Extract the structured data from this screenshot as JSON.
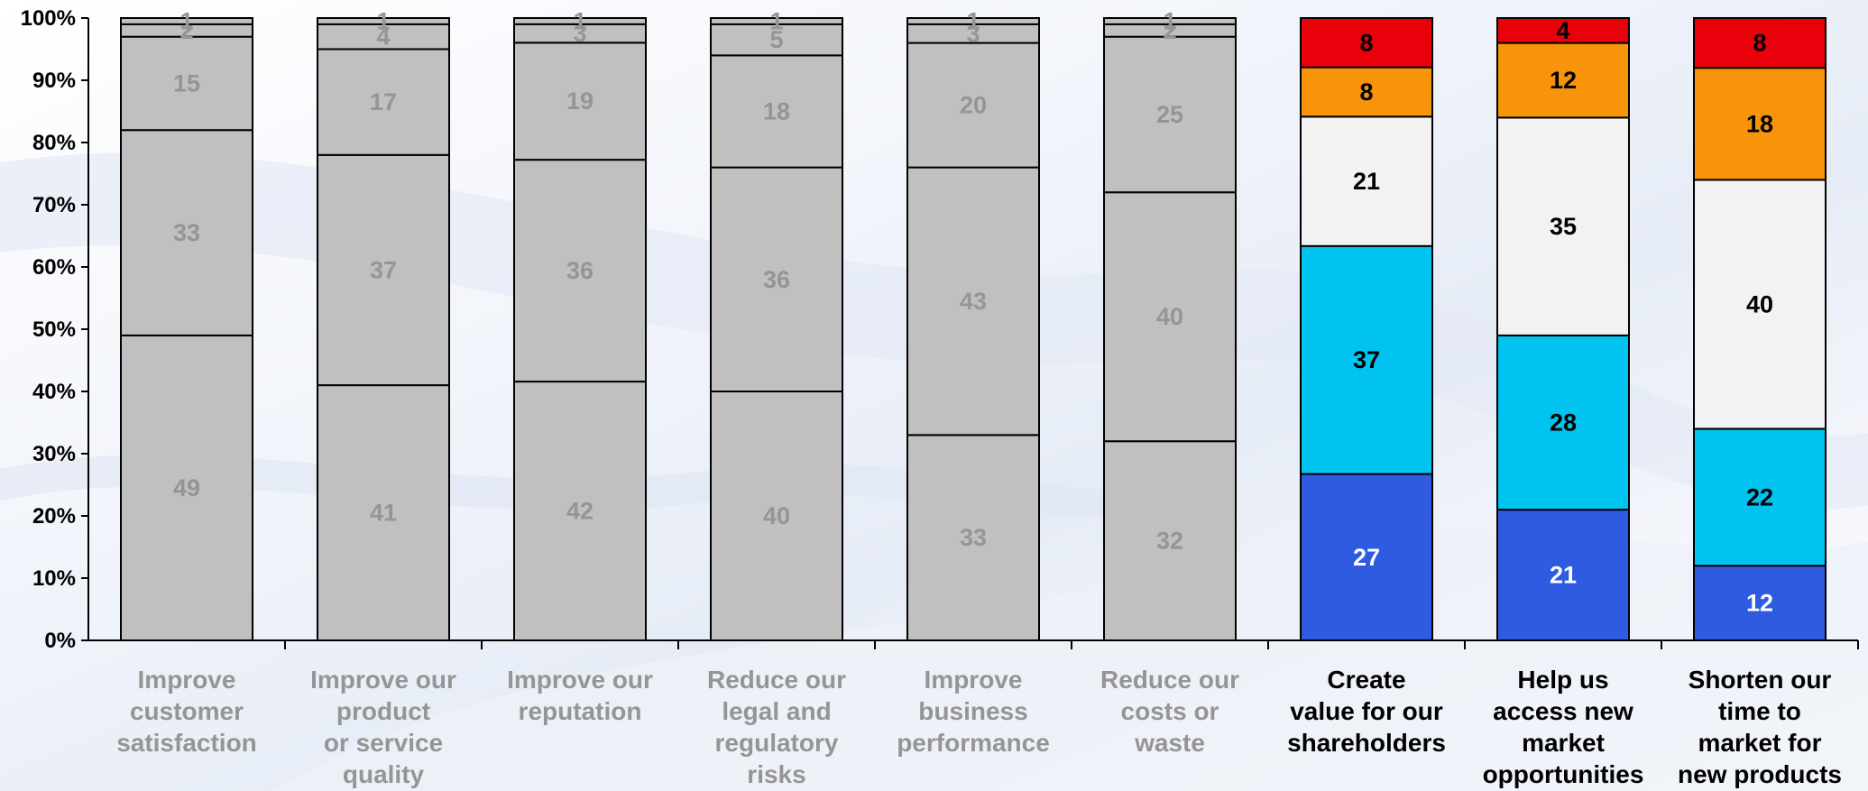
{
  "chart_data": {
    "type": "bar",
    "stacked": true,
    "percent": true,
    "y_tick_labels": [
      "0%",
      "10%",
      "20%",
      "30%",
      "40%",
      "50%",
      "60%",
      "70%",
      "80%",
      "90%",
      "100%"
    ],
    "ylim": [
      0,
      100
    ],
    "grid": false,
    "legend": "none",
    "categories": [
      "Improve customer satisfaction",
      "Improve our product or service quality",
      "Improve our reputation",
      "Reduce our legal and regulatory risks",
      "Improve business performance",
      "Reduce our costs or waste",
      "Create value for our shareholders",
      "Help us access new market opportunities",
      "Shorten our time to market for new products"
    ],
    "category_label_lines": [
      [
        "Improve",
        "customer",
        "satisfaction"
      ],
      [
        "Improve our",
        "product",
        "or service",
        "quality"
      ],
      [
        "Improve our",
        "reputation"
      ],
      [
        "Reduce our",
        "legal and",
        "regulatory",
        "risks"
      ],
      [
        "Improve",
        "business",
        "performance"
      ],
      [
        "Reduce our",
        "costs or",
        "waste"
      ],
      [
        "Create",
        "value for our",
        "shareholders"
      ],
      [
        "Help us",
        "access new",
        "market",
        "opportunities"
      ],
      [
        "Shorten our",
        "time to",
        "market for",
        "new products"
      ]
    ],
    "highlighted": [
      false,
      false,
      false,
      false,
      false,
      false,
      true,
      true,
      true
    ],
    "stacks": [
      [
        49,
        33,
        15,
        2,
        1
      ],
      [
        41,
        37,
        17,
        4,
        1
      ],
      [
        42,
        36,
        19,
        3,
        1
      ],
      [
        40,
        36,
        18,
        5,
        1
      ],
      [
        33,
        43,
        20,
        3,
        1
      ],
      [
        32,
        40,
        25,
        2,
        1
      ],
      [
        27,
        37,
        21,
        8,
        8
      ],
      [
        21,
        28,
        35,
        12,
        4
      ],
      [
        12,
        22,
        40,
        18,
        8
      ]
    ],
    "colors": {
      "muted_fill": "#c0c0c0",
      "muted_text": "#959595",
      "segment_fills": [
        "#2f5be0",
        "#00c3f0",
        "#f2f2f2",
        "#f7940a",
        "#e8000b"
      ],
      "segment_text": [
        "#ffffff",
        "#000000",
        "#000000",
        "#000000",
        "#000000"
      ],
      "highlight_text": "#000000",
      "outline": "#000000"
    }
  }
}
